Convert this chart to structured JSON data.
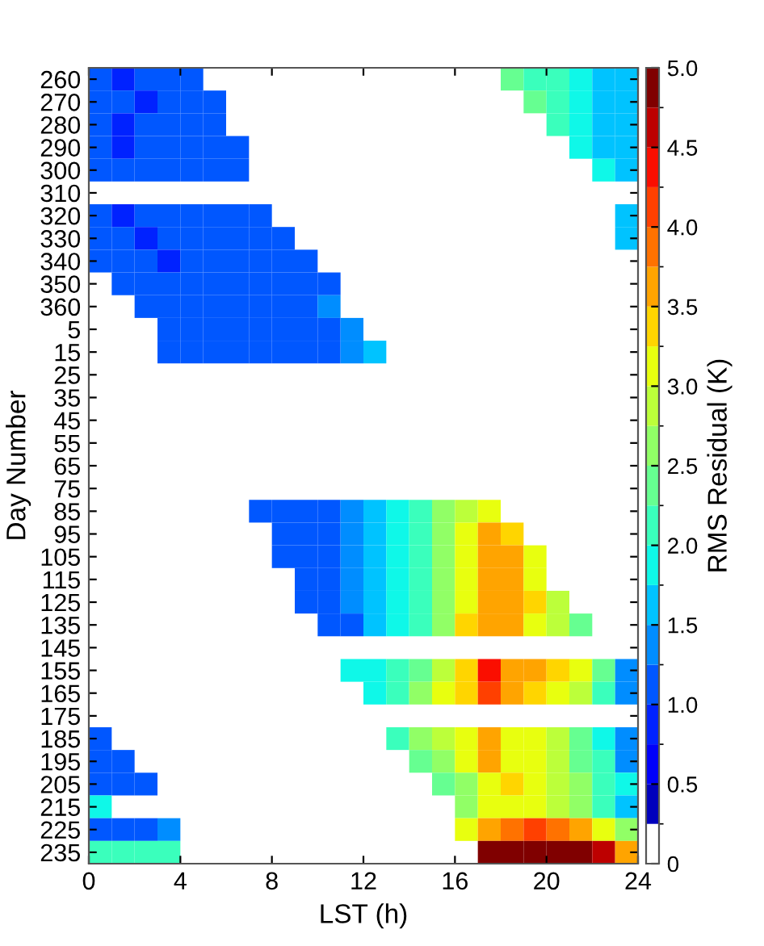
{
  "chart_data": {
    "type": "heatmap",
    "xlabel": "LST (h)",
    "ylabel": "Day Number",
    "clabel": "RMS Residual (K)",
    "x": [
      0.5,
      1.5,
      2.5,
      3.5,
      4.5,
      5.5,
      6.5,
      7.5,
      8.5,
      9.5,
      10.5,
      11.5,
      12.5,
      13.5,
      14.5,
      15.5,
      16.5,
      17.5,
      18.5,
      19.5,
      20.5,
      21.5,
      22.5,
      23.5
    ],
    "xlim": [
      0,
      24
    ],
    "xticks": [
      0,
      4,
      8,
      12,
      16,
      20,
      24
    ],
    "y_categories": [
      "260",
      "270",
      "280",
      "290",
      "300",
      "310",
      "320",
      "330",
      "340",
      "350",
      "360",
      "5",
      "15",
      "25",
      "35",
      "45",
      "55",
      "65",
      "75",
      "85",
      "95",
      "105",
      "115",
      "125",
      "135",
      "145",
      "155",
      "165",
      "175",
      "185",
      "195",
      "205",
      "215",
      "225",
      "235"
    ],
    "clim": [
      0,
      5
    ],
    "cticks": [
      0,
      0.5,
      {
        "value": 1,
        "label": "1.0"
      },
      1.5,
      {
        "value": 2,
        "label": "2.0"
      },
      2.5,
      {
        "value": 3,
        "label": "3.0"
      },
      3.5,
      {
        "value": 4,
        "label": "4.0"
      },
      4.5,
      {
        "value": 5,
        "label": "5.0"
      }
    ],
    "cells": [
      [
        1.0,
        0.9,
        1.0,
        1.0,
        1.1,
        null,
        null,
        null,
        null,
        null,
        null,
        null,
        null,
        null,
        null,
        null,
        null,
        null,
        2.3,
        2.2,
        2.1,
        1.8,
        1.6,
        1.5
      ],
      [
        1.0,
        1.0,
        0.9,
        1.0,
        1.0,
        1.1,
        null,
        null,
        null,
        null,
        null,
        null,
        null,
        null,
        null,
        null,
        null,
        null,
        null,
        2.4,
        2.1,
        1.9,
        1.6,
        1.5
      ],
      [
        1.0,
        0.9,
        1.0,
        1.0,
        1.0,
        1.1,
        null,
        null,
        null,
        null,
        null,
        null,
        null,
        null,
        null,
        null,
        null,
        null,
        null,
        null,
        2.1,
        1.9,
        1.7,
        1.5
      ],
      [
        1.0,
        0.9,
        1.0,
        1.0,
        1.0,
        1.0,
        1.1,
        null,
        null,
        null,
        null,
        null,
        null,
        null,
        null,
        null,
        null,
        null,
        null,
        null,
        null,
        1.8,
        1.6,
        1.5
      ],
      [
        1.0,
        1.0,
        1.0,
        1.0,
        1.0,
        1.0,
        1.1,
        null,
        null,
        null,
        null,
        null,
        null,
        null,
        null,
        null,
        null,
        null,
        null,
        null,
        null,
        null,
        1.8,
        1.6
      ],
      [
        null,
        null,
        null,
        null,
        null,
        null,
        null,
        null,
        null,
        null,
        null,
        null,
        null,
        null,
        null,
        null,
        null,
        null,
        null,
        null,
        null,
        null,
        null,
        null
      ],
      [
        1.0,
        0.9,
        1.0,
        1.0,
        1.0,
        1.0,
        1.0,
        1.1,
        null,
        null,
        null,
        null,
        null,
        null,
        null,
        null,
        null,
        null,
        null,
        null,
        null,
        null,
        null,
        1.5
      ],
      [
        1.0,
        1.0,
        0.9,
        1.0,
        1.0,
        1.0,
        1.0,
        1.0,
        1.1,
        null,
        null,
        null,
        null,
        null,
        null,
        null,
        null,
        null,
        null,
        null,
        null,
        null,
        null,
        1.5
      ],
      [
        1.0,
        1.0,
        1.0,
        0.9,
        1.0,
        1.0,
        1.0,
        1.0,
        1.0,
        1.1,
        null,
        null,
        null,
        null,
        null,
        null,
        null,
        null,
        null,
        null,
        null,
        null,
        null,
        null
      ],
      [
        null,
        1.0,
        1.0,
        1.0,
        1.0,
        1.0,
        1.0,
        1.0,
        1.0,
        1.1,
        1.2,
        null,
        null,
        null,
        null,
        null,
        null,
        null,
        null,
        null,
        null,
        null,
        null,
        null
      ],
      [
        null,
        null,
        1.0,
        1.0,
        1.0,
        1.0,
        1.0,
        1.0,
        1.1,
        1.2,
        1.3,
        null,
        null,
        null,
        null,
        null,
        null,
        null,
        null,
        null,
        null,
        null,
        null,
        null
      ],
      [
        null,
        null,
        null,
        1.0,
        1.0,
        1.0,
        1.0,
        1.0,
        1.1,
        1.1,
        1.2,
        1.4,
        null,
        null,
        null,
        null,
        null,
        null,
        null,
        null,
        null,
        null,
        null,
        null
      ],
      [
        null,
        null,
        null,
        1.0,
        1.0,
        1.0,
        1.0,
        1.0,
        1.1,
        1.1,
        1.2,
        1.4,
        1.7,
        null,
        null,
        null,
        null,
        null,
        null,
        null,
        null,
        null,
        null,
        null
      ],
      [
        null,
        null,
        null,
        null,
        null,
        null,
        null,
        null,
        null,
        null,
        null,
        null,
        null,
        null,
        null,
        null,
        null,
        null,
        null,
        null,
        null,
        null,
        null,
        null
      ],
      [
        null,
        null,
        null,
        null,
        null,
        null,
        null,
        null,
        null,
        null,
        null,
        null,
        null,
        null,
        null,
        null,
        null,
        null,
        null,
        null,
        null,
        null,
        null,
        null
      ],
      [
        null,
        null,
        null,
        null,
        null,
        null,
        null,
        null,
        null,
        null,
        null,
        null,
        null,
        null,
        null,
        null,
        null,
        null,
        null,
        null,
        null,
        null,
        null,
        null
      ],
      [
        null,
        null,
        null,
        null,
        null,
        null,
        null,
        null,
        null,
        null,
        null,
        null,
        null,
        null,
        null,
        null,
        null,
        null,
        null,
        null,
        null,
        null,
        null,
        null
      ],
      [
        null,
        null,
        null,
        null,
        null,
        null,
        null,
        null,
        null,
        null,
        null,
        null,
        null,
        null,
        null,
        null,
        null,
        null,
        null,
        null,
        null,
        null,
        null,
        null
      ],
      [
        null,
        null,
        null,
        null,
        null,
        null,
        null,
        null,
        null,
        null,
        null,
        null,
        null,
        null,
        null,
        null,
        null,
        null,
        null,
        null,
        null,
        null,
        null,
        null
      ],
      [
        null,
        null,
        null,
        null,
        null,
        null,
        null,
        1.0,
        1.0,
        1.1,
        1.1,
        1.3,
        1.6,
        1.8,
        2.1,
        2.6,
        2.9,
        3.2,
        null,
        null,
        null,
        null,
        null,
        null
      ],
      [
        null,
        null,
        null,
        null,
        null,
        null,
        null,
        null,
        1.0,
        1.1,
        1.2,
        1.3,
        1.6,
        1.8,
        2.1,
        2.6,
        3.0,
        3.5,
        3.4,
        null,
        null,
        null,
        null,
        null
      ],
      [
        null,
        null,
        null,
        null,
        null,
        null,
        null,
        null,
        1.0,
        1.1,
        1.2,
        1.3,
        1.5,
        1.8,
        2.1,
        2.6,
        3.0,
        3.5,
        3.6,
        3.0,
        null,
        null,
        null,
        null
      ],
      [
        null,
        null,
        null,
        null,
        null,
        null,
        null,
        null,
        null,
        1.0,
        1.1,
        1.3,
        1.5,
        1.8,
        2.1,
        2.6,
        3.1,
        3.5,
        3.6,
        3.2,
        null,
        null,
        null,
        null
      ],
      [
        null,
        null,
        null,
        null,
        null,
        null,
        null,
        null,
        null,
        1.0,
        1.1,
        1.3,
        1.5,
        1.8,
        2.2,
        2.7,
        3.2,
        3.6,
        3.7,
        3.4,
        2.8,
        null,
        null,
        null
      ],
      [
        null,
        null,
        null,
        null,
        null,
        null,
        null,
        null,
        null,
        null,
        1.1,
        1.2,
        1.5,
        1.8,
        2.1,
        2.6,
        3.3,
        3.6,
        3.7,
        3.2,
        2.8,
        2.4,
        null,
        null
      ],
      [
        null,
        null,
        null,
        null,
        null,
        null,
        null,
        null,
        null,
        null,
        null,
        null,
        null,
        null,
        null,
        null,
        null,
        null,
        null,
        null,
        null,
        null,
        null,
        null
      ],
      [
        null,
        null,
        null,
        null,
        null,
        null,
        null,
        null,
        null,
        null,
        null,
        1.8,
        1.9,
        2.1,
        2.4,
        2.9,
        3.4,
        4.3,
        3.7,
        3.5,
        3.3,
        3.1,
        2.3,
        1.3
      ],
      [
        null,
        null,
        null,
        null,
        null,
        null,
        null,
        null,
        null,
        null,
        null,
        null,
        1.9,
        2.2,
        2.6,
        3.1,
        3.4,
        4.2,
        3.6,
        3.4,
        3.2,
        2.9,
        2.2,
        1.4
      ],
      [
        null,
        null,
        null,
        null,
        null,
        null,
        null,
        null,
        null,
        null,
        null,
        null,
        null,
        null,
        null,
        null,
        null,
        null,
        null,
        null,
        null,
        null,
        null,
        null
      ],
      [
        1.0,
        null,
        null,
        null,
        null,
        null,
        null,
        null,
        null,
        null,
        null,
        null,
        null,
        2.2,
        2.5,
        2.8,
        3.2,
        3.6,
        3.2,
        3.0,
        2.8,
        2.4,
        1.9,
        1.4
      ],
      [
        1.0,
        1.1,
        null,
        null,
        null,
        null,
        null,
        null,
        null,
        null,
        null,
        null,
        null,
        null,
        2.3,
        2.6,
        3.0,
        3.5,
        3.2,
        3.0,
        2.8,
        2.4,
        2.0,
        1.3
      ],
      [
        1.0,
        1.0,
        1.1,
        null,
        null,
        null,
        null,
        null,
        null,
        null,
        null,
        null,
        null,
        null,
        null,
        2.3,
        2.6,
        3.0,
        3.3,
        3.1,
        2.9,
        2.6,
        2.2,
        1.8
      ],
      [
        1.8,
        null,
        null,
        null,
        null,
        null,
        null,
        null,
        null,
        null,
        null,
        null,
        null,
        null,
        null,
        null,
        2.6,
        3.0,
        3.2,
        3.1,
        2.9,
        2.6,
        2.1,
        1.6
      ],
      [
        1.2,
        1.2,
        1.2,
        1.3,
        null,
        null,
        null,
        null,
        null,
        null,
        null,
        null,
        null,
        null,
        null,
        null,
        3.2,
        3.6,
        3.8,
        4.0,
        3.8,
        3.6,
        3.2,
        2.6
      ],
      [
        2.0,
        2.1,
        2.2,
        2.2,
        null,
        null,
        null,
        null,
        null,
        null,
        null,
        null,
        null,
        null,
        null,
        null,
        null,
        4.9,
        5.0,
        5.0,
        5.0,
        4.9,
        4.5,
        3.5
      ]
    ]
  }
}
